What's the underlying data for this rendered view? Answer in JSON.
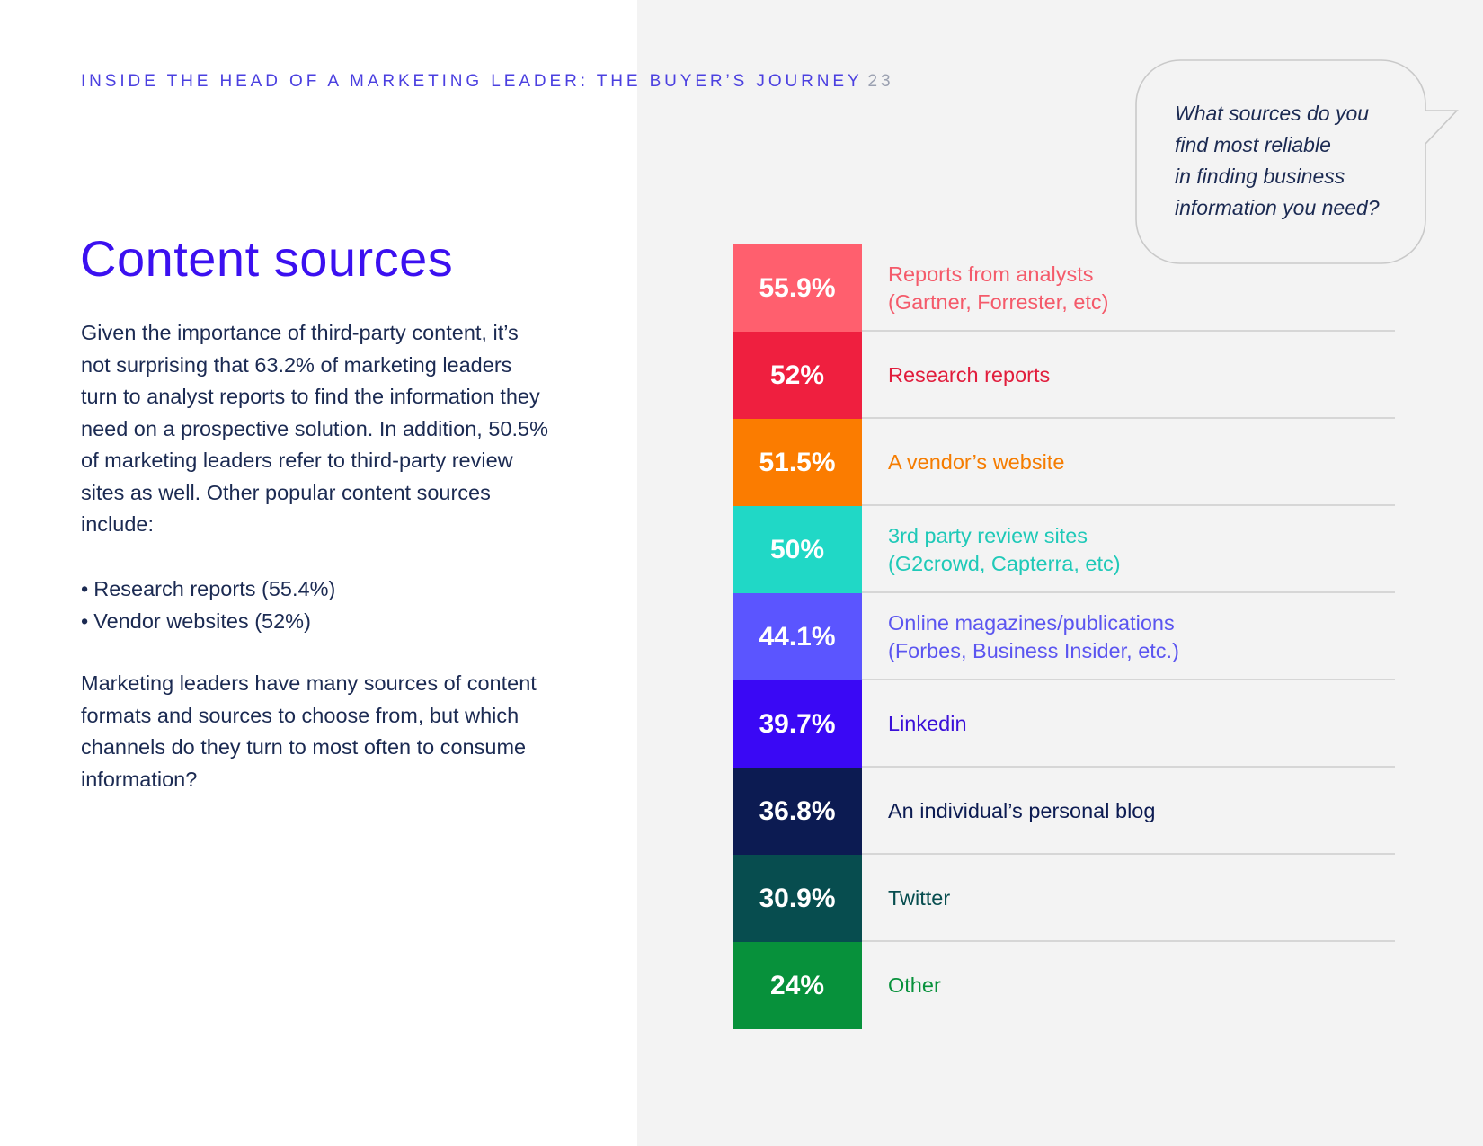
{
  "header": {
    "running_title": "INSIDE THE HEAD OF A MARKETING LEADER: THE BUYER’S JOURNEY",
    "page_number": "23"
  },
  "main": {
    "title": "Content sources",
    "intro": "Given the importance of third-party content, it’s not surprising that 63.2% of marketing leaders turn to analyst reports to find the information they need on a prospective solution. In addition, 50.5% of marketing leaders refer to third-party review sites as well. Other popular content sources include:",
    "bullets": [
      "Research reports (55.4%)",
      "Vendor websites (52%)"
    ],
    "outro": "Marketing leaders have many sources of content formats and sources to choose from, but which channels do they turn to most often to consume information?"
  },
  "bubble": {
    "lines": [
      "What sources do you",
      "find most reliable",
      "in finding business",
      "information you need?"
    ]
  },
  "chart_data": {
    "type": "table",
    "question": "What sources do you find most reliable in finding business information you need?",
    "rows": [
      {
        "value": 55.9,
        "display": "55.9%",
        "label_lines": [
          "Reports from analysts",
          "(Gartner, Forrester, etc)"
        ],
        "color": "#ff5f6e"
      },
      {
        "value": 52,
        "display": "52%",
        "label_lines": [
          "Research reports"
        ],
        "color": "#ef1f3f"
      },
      {
        "value": 51.5,
        "display": "51.5%",
        "label_lines": [
          "A vendor’s website"
        ],
        "color": "#fb7c00"
      },
      {
        "value": 50,
        "display": "50%",
        "label_lines": [
          "3rd party review sites",
          "(G2crowd, Capterra, etc)"
        ],
        "color": "#20d8c6"
      },
      {
        "value": 44.1,
        "display": "44.1%",
        "label_lines": [
          "Online magazines/publications",
          "(Forbes, Business Insider, etc.)"
        ],
        "color": "#5b55ff"
      },
      {
        "value": 39.7,
        "display": "39.7%",
        "label_lines": [
          "Linkedin"
        ],
        "color": "#3a08f5"
      },
      {
        "value": 36.8,
        "display": "36.8%",
        "label_lines": [
          "An individual’s personal blog"
        ],
        "color": "#0c1b52"
      },
      {
        "value": 30.9,
        "display": "30.9%",
        "label_lines": [
          "Twitter"
        ],
        "color": "#074d4f"
      },
      {
        "value": 24,
        "display": "24%",
        "label_lines": [
          "Other"
        ],
        "color": "#07913b"
      }
    ],
    "label_colors": [
      "#f45a6a",
      "#e11d3c",
      "#f57c00",
      "#1fc9b8",
      "#5b55f0",
      "#3a10d8",
      "#0c1b52",
      "#074d4f",
      "#07913b"
    ]
  }
}
